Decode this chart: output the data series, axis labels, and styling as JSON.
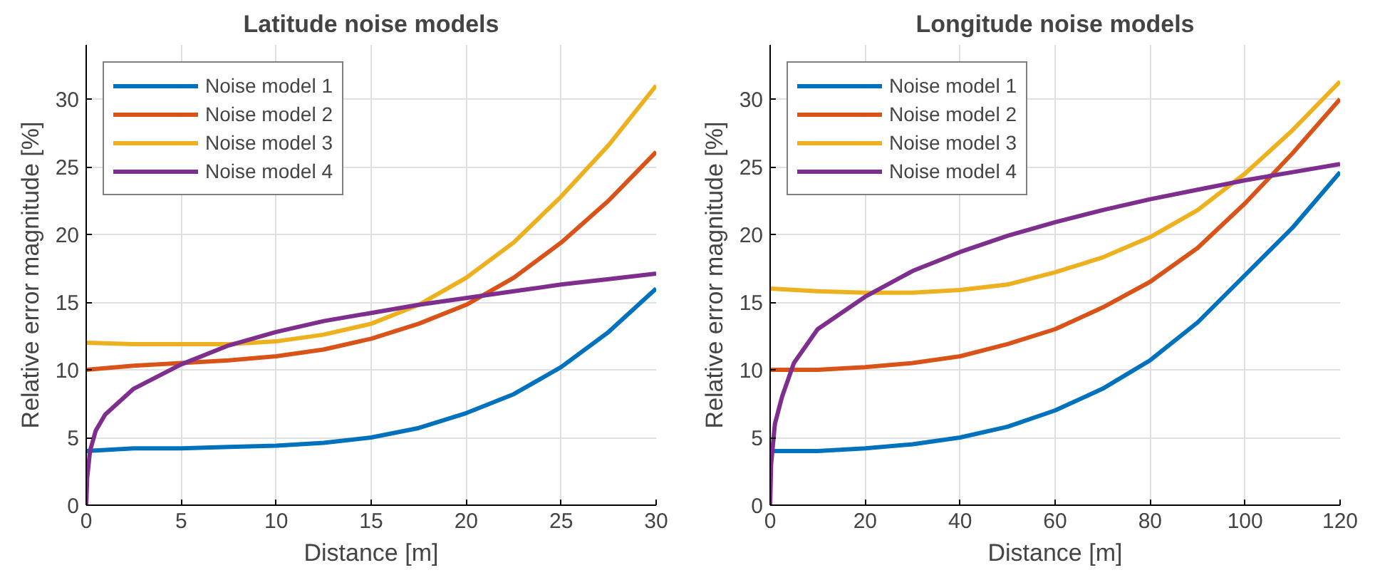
{
  "chart_data": [
    {
      "type": "line",
      "title": "Latitude noise models",
      "xlabel": "Distance [m]",
      "ylabel": "Relative error magnitude [%]",
      "xlim": [
        0,
        30
      ],
      "ylim": [
        0,
        34
      ],
      "xticks": [
        0,
        5,
        10,
        15,
        20,
        25,
        30
      ],
      "yticks": [
        0,
        5,
        10,
        15,
        20,
        25,
        30
      ],
      "grid": true,
      "legend": "top left",
      "series": [
        {
          "name": "Noise model 1",
          "color": "#0072bd",
          "x": [
            0,
            2.5,
            5,
            7.5,
            10,
            12.5,
            15,
            17.5,
            20,
            22.5,
            25,
            27.5,
            30
          ],
          "values": [
            4.0,
            4.2,
            4.2,
            4.3,
            4.4,
            4.6,
            5.0,
            5.7,
            6.8,
            8.2,
            10.2,
            12.8,
            16.0
          ]
        },
        {
          "name": "Noise model 2",
          "color": "#d95319",
          "x": [
            0,
            2.5,
            5,
            7.5,
            10,
            12.5,
            15,
            17.5,
            20,
            22.5,
            25,
            27.5,
            30
          ],
          "values": [
            10.0,
            10.3,
            10.5,
            10.7,
            11.0,
            11.5,
            12.3,
            13.4,
            14.8,
            16.8,
            19.4,
            22.5,
            26.1
          ]
        },
        {
          "name": "Noise model 3",
          "color": "#edb120",
          "x": [
            0,
            2.5,
            5,
            7.5,
            10,
            12.5,
            15,
            17.5,
            20,
            22.5,
            25,
            27.5,
            30
          ],
          "values": [
            12.0,
            11.9,
            11.9,
            11.9,
            12.1,
            12.6,
            13.4,
            14.8,
            16.8,
            19.4,
            22.8,
            26.6,
            31.0
          ]
        },
        {
          "name": "Noise model 4",
          "color": "#7e2f8e",
          "x": [
            0,
            0.05,
            0.2,
            0.5,
            1,
            2.5,
            5,
            7.5,
            10,
            12.5,
            15,
            17.5,
            20,
            22.5,
            25,
            27.5,
            30
          ],
          "values": [
            0,
            2,
            4,
            5.5,
            6.7,
            8.6,
            10.4,
            11.8,
            12.8,
            13.6,
            14.2,
            14.8,
            15.3,
            15.8,
            16.3,
            16.7,
            17.1
          ]
        }
      ]
    },
    {
      "type": "line",
      "title": "Longitude noise models",
      "xlabel": "Distance [m]",
      "ylabel": "Relative error magnitude [%]",
      "xlim": [
        0,
        120
      ],
      "ylim": [
        0,
        34
      ],
      "xticks": [
        0,
        20,
        40,
        60,
        80,
        100,
        120
      ],
      "yticks": [
        0,
        5,
        10,
        15,
        20,
        25,
        30
      ],
      "grid": true,
      "legend": "top left",
      "series": [
        {
          "name": "Noise model 1",
          "color": "#0072bd",
          "x": [
            0,
            10,
            20,
            30,
            40,
            50,
            60,
            70,
            80,
            90,
            100,
            110,
            120
          ],
          "values": [
            4.0,
            4.0,
            4.2,
            4.5,
            5.0,
            5.8,
            7.0,
            8.6,
            10.7,
            13.5,
            17.0,
            20.5,
            24.6
          ]
        },
        {
          "name": "Noise model 2",
          "color": "#d95319",
          "x": [
            0,
            10,
            20,
            30,
            40,
            50,
            60,
            70,
            80,
            90,
            100,
            110,
            120
          ],
          "values": [
            10.0,
            10.0,
            10.2,
            10.5,
            11.0,
            11.9,
            13.0,
            14.6,
            16.5,
            19.0,
            22.3,
            26.0,
            30.0
          ]
        },
        {
          "name": "Noise model 3",
          "color": "#edb120",
          "x": [
            0,
            10,
            20,
            30,
            40,
            50,
            60,
            70,
            80,
            90,
            100,
            110,
            120
          ],
          "values": [
            16.0,
            15.8,
            15.7,
            15.7,
            15.9,
            16.3,
            17.2,
            18.3,
            19.8,
            21.8,
            24.5,
            27.7,
            31.3
          ]
        },
        {
          "name": "Noise model 4",
          "color": "#7e2f8e",
          "x": [
            0,
            0.2,
            1,
            2.5,
            5,
            10,
            20,
            30,
            40,
            50,
            60,
            70,
            80,
            90,
            100,
            110,
            120
          ],
          "values": [
            0,
            3,
            6,
            8,
            10.5,
            13.0,
            15.4,
            17.3,
            18.7,
            19.9,
            20.9,
            21.8,
            22.6,
            23.3,
            24.0,
            24.6,
            25.2
          ]
        }
      ]
    }
  ]
}
